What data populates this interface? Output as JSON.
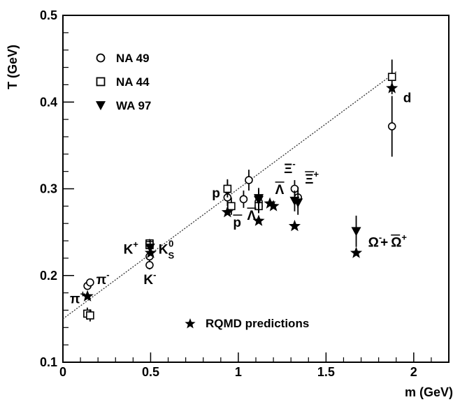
{
  "chart_data": {
    "type": "scatter",
    "title": "",
    "xlabel": "m (GeV)",
    "ylabel": "T (GeV)",
    "xlim": [
      0,
      2.2
    ],
    "ylim": [
      0.1,
      0.5
    ],
    "x_ticks": [
      0,
      0.5,
      1,
      1.5,
      2
    ],
    "x_tick_labels": [
      "0",
      "0.5",
      "1",
      "1.5",
      "2"
    ],
    "y_ticks": [
      0.1,
      0.2,
      0.3,
      0.4,
      0.5
    ],
    "y_tick_labels": [
      "0.1",
      "0.2",
      "0.3",
      "0.4",
      "0.5"
    ],
    "grid": false,
    "legend": {
      "placement": "top-left",
      "entries": [
        {
          "label": "NA 49",
          "marker": "circle"
        },
        {
          "label": "NA 44",
          "marker": "square"
        },
        {
          "label": "WA 97",
          "marker": "triangle-down"
        }
      ],
      "rqmd_label": "RQMD predictions"
    },
    "fit_line": {
      "style": "dotted",
      "x": [
        0,
        1.9
      ],
      "y": [
        0.15,
        0.435
      ]
    },
    "series": [
      {
        "name": "NA 49",
        "marker": "circle",
        "points": [
          {
            "x": 0.14,
            "y": 0.188,
            "err": 0.004
          },
          {
            "x": 0.155,
            "y": 0.192,
            "err": 0.004
          },
          {
            "x": 0.494,
            "y": 0.222,
            "err": 0.005
          },
          {
            "x": 0.494,
            "y": 0.212,
            "err": 0.005
          },
          {
            "x": 0.938,
            "y": 0.299,
            "err": 0.012
          },
          {
            "x": 0.938,
            "y": 0.29,
            "err": 0.01
          },
          {
            "x": 1.03,
            "y": 0.288,
            "err": 0.01
          },
          {
            "x": 1.06,
            "y": 0.31,
            "err": 0.012
          },
          {
            "x": 1.116,
            "y": 0.285,
            "err": 0.008
          },
          {
            "x": 1.116,
            "y": 0.28,
            "err": 0.008
          },
          {
            "x": 1.321,
            "y": 0.3,
            "err": 0.01
          },
          {
            "x": 1.34,
            "y": 0.29,
            "err": 0.012
          },
          {
            "x": 1.876,
            "y": 0.372,
            "err": 0.035
          }
        ]
      },
      {
        "name": "NA 44",
        "marker": "square",
        "points": [
          {
            "x": 0.139,
            "y": 0.156,
            "err": 0.007
          },
          {
            "x": 0.155,
            "y": 0.154,
            "err": 0.007
          },
          {
            "x": 0.494,
            "y": 0.237,
            "err": 0.005
          },
          {
            "x": 0.494,
            "y": 0.235,
            "err": 0.005
          },
          {
            "x": 0.938,
            "y": 0.3,
            "err": 0.01
          },
          {
            "x": 0.96,
            "y": 0.28,
            "err": 0.01
          },
          {
            "x": 1.116,
            "y": 0.28,
            "err": 0.008
          },
          {
            "x": 1.876,
            "y": 0.429,
            "err": 0.02
          }
        ]
      },
      {
        "name": "WA 97",
        "marker": "triangle-down",
        "points": [
          {
            "x": 0.497,
            "y": 0.232,
            "err": 0.009
          },
          {
            "x": 1.116,
            "y": 0.289,
            "err": 0.012
          },
          {
            "x": 1.116,
            "y": 0.287,
            "err": 0.012
          },
          {
            "x": 1.321,
            "y": 0.286,
            "err": 0.012
          },
          {
            "x": 1.34,
            "y": 0.284,
            "err": 0.014
          },
          {
            "x": 1.672,
            "y": 0.251,
            "err": 0.018
          }
        ]
      },
      {
        "name": "RQMD predictions",
        "marker": "star",
        "points": [
          {
            "x": 0.14,
            "y": 0.176
          },
          {
            "x": 0.5,
            "y": 0.226
          },
          {
            "x": 0.938,
            "y": 0.273
          },
          {
            "x": 1.116,
            "y": 0.263
          },
          {
            "x": 1.18,
            "y": 0.283
          },
          {
            "x": 1.2,
            "y": 0.28
          },
          {
            "x": 1.321,
            "y": 0.257
          },
          {
            "x": 1.672,
            "y": 0.226
          },
          {
            "x": 1.876,
            "y": 0.416
          }
        ]
      }
    ],
    "annotations": [
      {
        "text": "π",
        "sup": "-",
        "x": 0.19,
        "y": 0.19
      },
      {
        "text": "π",
        "sup": "+",
        "x": 0.04,
        "y": 0.168
      },
      {
        "text": "K",
        "sup": "+",
        "x": 0.345,
        "y": 0.225
      },
      {
        "text": "K",
        "sup": "0",
        "sub": "S",
        "x": 0.545,
        "y": 0.225
      },
      {
        "text": "K",
        "sup": "-",
        "x": 0.46,
        "y": 0.19
      },
      {
        "text": "p",
        "x": 0.85,
        "y": 0.29
      },
      {
        "text": "p",
        "overline": true,
        "x": 0.97,
        "y": 0.256
      },
      {
        "text": "Λ",
        "overline": true,
        "x": 1.05,
        "y": 0.264
      },
      {
        "text": "Λ",
        "overline": true,
        "x": 1.21,
        "y": 0.294
      },
      {
        "text": "Ξ",
        "sup": "-",
        "x": 1.26,
        "y": 0.318
      },
      {
        "text": "Ξ",
        "overline": true,
        "sup": "+",
        "x": 1.38,
        "y": 0.306
      },
      {
        "text": "Ω",
        "sup": "-",
        "x": 1.74,
        "y": 0.233
      },
      {
        "text": "+",
        "x": 1.81,
        "y": 0.233
      },
      {
        "text": "Ω",
        "overline": true,
        "sup": "+",
        "x": 1.87,
        "y": 0.233
      },
      {
        "text": "d",
        "x": 1.94,
        "y": 0.4
      }
    ]
  }
}
